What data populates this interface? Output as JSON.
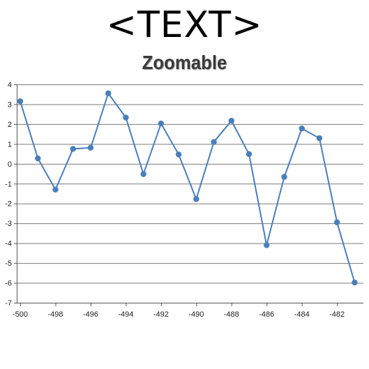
{
  "header": {
    "text": "<TEXT>"
  },
  "chart_data": {
    "type": "line",
    "title": "Zoomable",
    "xlabel": "",
    "ylabel": "",
    "x": [
      -500,
      -499,
      -498,
      -497,
      -496,
      -495,
      -494,
      -493,
      -492,
      -491,
      -490,
      -489,
      -488,
      -487,
      -486,
      -485,
      -484,
      -483,
      -482,
      -481
    ],
    "values": [
      3.15,
      0.27,
      -1.3,
      0.75,
      0.81,
      3.55,
      2.33,
      -0.52,
      2.03,
      0.47,
      -1.78,
      1.1,
      2.17,
      0.49,
      -4.1,
      -0.66,
      1.78,
      1.29,
      -2.95,
      -5.98
    ],
    "xlim": [
      -500.2,
      -480.5
    ],
    "ylim": [
      -7,
      4
    ],
    "xticks": [
      -500,
      -498,
      -496,
      -494,
      -492,
      -490,
      -488,
      -486,
      -484,
      -482
    ],
    "yticks": [
      4,
      3,
      2,
      1,
      0,
      -1,
      -2,
      -3,
      -4,
      -5,
      -6,
      -7
    ],
    "grid": true,
    "line_color": "#4a7ebb"
  }
}
